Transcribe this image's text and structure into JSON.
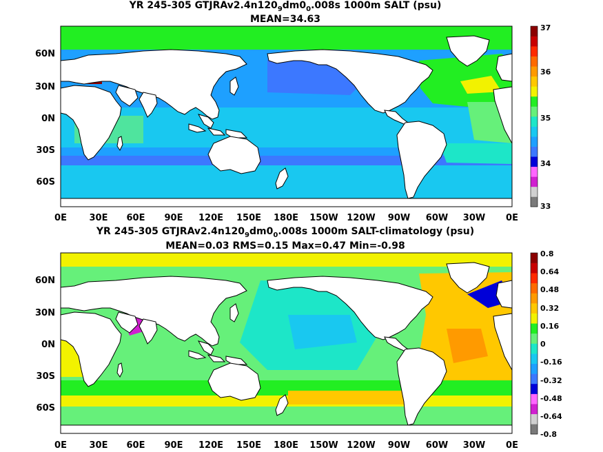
{
  "colors": {
    "land": "#ffffff",
    "coast": "#000000",
    "salt_scale": [
      "#7a7a7a",
      "#d0d0d0",
      "#d020d0",
      "#ff66ff",
      "#0000d8",
      "#3c78ff",
      "#1ea0ff",
      "#19c8f0",
      "#1de6c8",
      "#66f07a",
      "#22ee22",
      "#f2f200",
      "#ffc800",
      "#ff9a00",
      "#ff6a00",
      "#ff2a00",
      "#c80000",
      "#8b0000"
    ],
    "anom_scale": [
      "#7a7a7a",
      "#d0d0d0",
      "#d020d0",
      "#ff66ff",
      "#0000d8",
      "#3c78ff",
      "#1ea0ff",
      "#19c8f0",
      "#1de6c8",
      "#66f07a",
      "#22ee22",
      "#f2f200",
      "#ffc800",
      "#ff9a00",
      "#ff6a00",
      "#ff2a00",
      "#c80000",
      "#8b0000"
    ]
  },
  "panels": [
    {
      "title_pre": "YR 245-305 GTJRAv2.4n120",
      "title_sub1": "9",
      "title_mid": "dm0",
      "title_sub2": "0",
      "title_post": ".008s 1000m SALT (psu)",
      "stats": "MEAN=34.63",
      "colorbar_ticks": [
        "37",
        "36",
        "35",
        "34",
        "33"
      ]
    },
    {
      "title_pre": "YR 245-305 GTJRAv2.4n120",
      "title_sub1": "9",
      "title_mid": "dm0",
      "title_sub2": "0",
      "title_post": ".008s 1000m SALT-climatology (psu)",
      "stats": "MEAN=0.03   RMS=0.15   Max=0.47   Min=-0.98",
      "colorbar_ticks": [
        "0.8",
        "0.64",
        "0.48",
        "0.32",
        "0.16",
        "0",
        "-0.16",
        "-0.32",
        "-0.48",
        "-0.64",
        "-0.8"
      ]
    }
  ],
  "lon_ticks": [
    "0E",
    "30E",
    "60E",
    "90E",
    "120E",
    "150E",
    "180E",
    "150W",
    "120W",
    "90W",
    "60W",
    "30W",
    "0E"
  ],
  "lat_ticks": [
    "60N",
    "30N",
    "0N",
    "30S",
    "60S"
  ]
}
